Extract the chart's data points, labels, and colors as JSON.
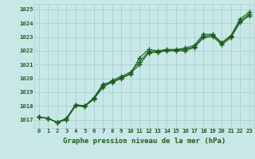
{
  "title": "Graphe pression niveau de la mer (hPa)",
  "x_values": [
    0,
    1,
    2,
    3,
    4,
    5,
    6,
    7,
    8,
    9,
    10,
    11,
    12,
    13,
    14,
    15,
    16,
    17,
    18,
    19,
    20,
    21,
    22,
    23
  ],
  "x_labels": [
    "0",
    "1",
    "2",
    "3",
    "4",
    "5",
    "6",
    "7",
    "8",
    "9",
    "10",
    "11",
    "12",
    "13",
    "14",
    "15",
    "16",
    "17",
    "18",
    "19",
    "20",
    "21",
    "22",
    "23"
  ],
  "series1": [
    1017.2,
    1017.1,
    1016.8,
    1017.1,
    1018.1,
    1018.0,
    1018.6,
    1019.6,
    1019.7,
    1020.0,
    1020.3,
    1021.5,
    1022.1,
    1022.0,
    1022.1,
    1022.1,
    1022.2,
    1022.4,
    1023.2,
    1023.2,
    1022.6,
    1023.1,
    1024.3,
    1024.8
  ],
  "series2": [
    1017.2,
    1017.1,
    1016.8,
    1017.1,
    1018.05,
    1018.0,
    1018.55,
    1019.45,
    1019.85,
    1020.15,
    1020.45,
    1021.2,
    1021.95,
    1021.95,
    1022.05,
    1022.05,
    1022.1,
    1022.3,
    1023.05,
    1023.15,
    1022.55,
    1023.05,
    1024.15,
    1024.65
  ],
  "series3": [
    1017.2,
    1017.1,
    1016.8,
    1017.0,
    1018.0,
    1017.95,
    1018.5,
    1019.35,
    1019.75,
    1020.05,
    1020.35,
    1021.0,
    1021.85,
    1021.9,
    1022.0,
    1022.0,
    1022.0,
    1022.25,
    1022.95,
    1023.05,
    1022.45,
    1022.95,
    1024.05,
    1024.55
  ],
  "ylim": [
    1016.4,
    1025.4
  ],
  "yticks": [
    1017,
    1018,
    1019,
    1020,
    1021,
    1022,
    1023,
    1024,
    1025
  ],
  "line_color": "#1a5c1a",
  "bg_color": "#c8e8e8",
  "grid_color": "#aacfcf",
  "title_color": "#1a5c1a"
}
